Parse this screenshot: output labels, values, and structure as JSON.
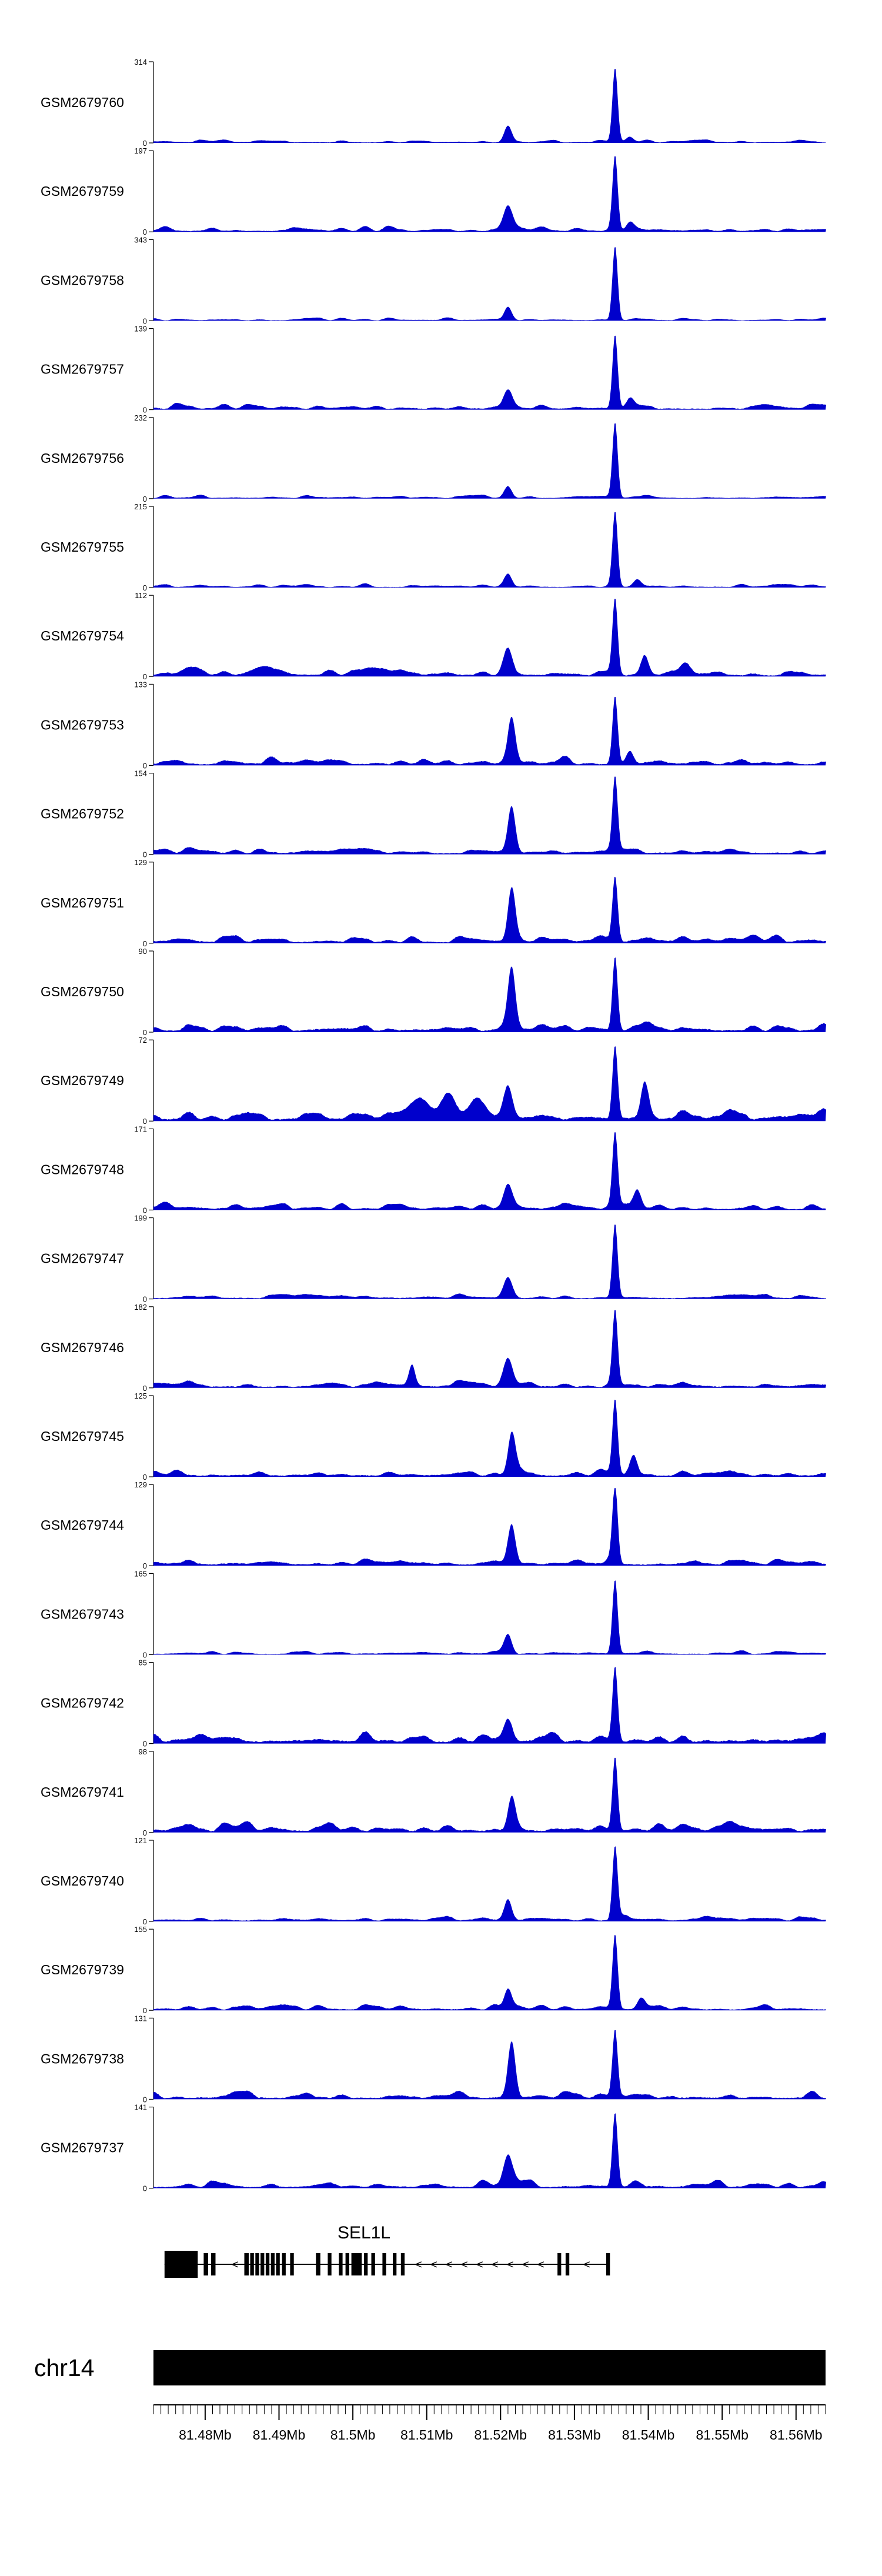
{
  "figure": {
    "kind": "genome-browser-coverage-tracks",
    "background": "#ffffff"
  },
  "colors": {
    "signal": "#0000cc",
    "gene": "#000000",
    "ideogram": "#000000",
    "axis": "#000000",
    "arrow": "#555555"
  },
  "chart_data": {
    "type": "area",
    "title": "",
    "x_axis": {
      "unit": "Mb",
      "domain": [
        81.473,
        81.564
      ],
      "ticks": [
        {
          "value": 81.48,
          "label": "81.48Mb"
        },
        {
          "value": 81.49,
          "label": "81.49Mb"
        },
        {
          "value": 81.5,
          "label": "81.5Mb"
        },
        {
          "value": 81.51,
          "label": "81.51Mb"
        },
        {
          "value": 81.52,
          "label": "81.52Mb"
        },
        {
          "value": 81.53,
          "label": "81.53Mb"
        },
        {
          "value": 81.54,
          "label": "81.54Mb"
        },
        {
          "value": 81.55,
          "label": "81.55Mb"
        },
        {
          "value": 81.56,
          "label": "81.56Mb"
        }
      ]
    },
    "tracks": [
      {
        "label": "GSM2679760",
        "ymax": 314,
        "ymin": 0,
        "noise": 0.02,
        "peaks": [
          [
            81.5355,
            1.0,
            0.00035
          ],
          [
            81.521,
            0.22,
            0.0005
          ],
          [
            81.5375,
            0.07,
            0.0005
          ]
        ]
      },
      {
        "label": "GSM2679759",
        "ymax": 197,
        "ymin": 0,
        "noise": 0.035,
        "peaks": [
          [
            81.5355,
            1.0,
            0.00035
          ],
          [
            81.521,
            0.3,
            0.0006
          ],
          [
            81.5375,
            0.1,
            0.0005
          ]
        ]
      },
      {
        "label": "GSM2679758",
        "ymax": 343,
        "ymin": 0,
        "noise": 0.02,
        "peaks": [
          [
            81.5355,
            1.0,
            0.00035
          ],
          [
            81.521,
            0.18,
            0.0005
          ]
        ]
      },
      {
        "label": "GSM2679757",
        "ymax": 139,
        "ymin": 0,
        "noise": 0.04,
        "peaks": [
          [
            81.5355,
            1.0,
            0.00035
          ],
          [
            81.521,
            0.26,
            0.0006
          ],
          [
            81.5375,
            0.12,
            0.0005
          ]
        ]
      },
      {
        "label": "GSM2679756",
        "ymax": 232,
        "ymin": 0,
        "noise": 0.025,
        "peaks": [
          [
            81.5355,
            1.0,
            0.00035
          ],
          [
            81.521,
            0.15,
            0.0005
          ]
        ]
      },
      {
        "label": "GSM2679755",
        "ymax": 215,
        "ymin": 0,
        "noise": 0.025,
        "peaks": [
          [
            81.5355,
            1.0,
            0.00035
          ],
          [
            81.521,
            0.15,
            0.0005
          ],
          [
            81.5385,
            0.1,
            0.0005
          ]
        ]
      },
      {
        "label": "GSM2679754",
        "ymax": 112,
        "ymin": 0,
        "noise": 0.055,
        "peaks": [
          [
            81.5355,
            1.0,
            0.00035
          ],
          [
            81.521,
            0.32,
            0.0006
          ],
          [
            81.5395,
            0.26,
            0.0005
          ],
          [
            81.545,
            0.16,
            0.0007
          ],
          [
            81.488,
            0.12,
            0.0015
          ],
          [
            81.478,
            0.1,
            0.0012
          ],
          [
            81.503,
            0.1,
            0.0015
          ]
        ]
      },
      {
        "label": "GSM2679753",
        "ymax": 133,
        "ymin": 0,
        "noise": 0.055,
        "peaks": [
          [
            81.5355,
            0.92,
            0.00035
          ],
          [
            81.5215,
            0.6,
            0.0005
          ],
          [
            81.5375,
            0.18,
            0.0005
          ]
        ]
      },
      {
        "label": "GSM2679752",
        "ymax": 154,
        "ymin": 0,
        "noise": 0.045,
        "peaks": [
          [
            81.5355,
            1.0,
            0.00035
          ],
          [
            81.5215,
            0.62,
            0.0005
          ]
        ]
      },
      {
        "label": "GSM2679751",
        "ymax": 129,
        "ymin": 0,
        "noise": 0.055,
        "peaks": [
          [
            81.5355,
            0.85,
            0.00035
          ],
          [
            81.5215,
            0.72,
            0.0005
          ]
        ]
      },
      {
        "label": "GSM2679750",
        "ymax": 90,
        "ymin": 0,
        "noise": 0.065,
        "peaks": [
          [
            81.5355,
            1.0,
            0.00035
          ],
          [
            81.5215,
            0.8,
            0.0005
          ]
        ]
      },
      {
        "label": "GSM2679749",
        "ymax": 72,
        "ymin": 0,
        "noise": 0.075,
        "peaks": [
          [
            81.5355,
            1.0,
            0.00035
          ],
          [
            81.521,
            0.4,
            0.0006
          ],
          [
            81.5395,
            0.42,
            0.0005
          ],
          [
            81.509,
            0.22,
            0.0012
          ],
          [
            81.513,
            0.26,
            0.001
          ],
          [
            81.517,
            0.26,
            0.001
          ]
        ]
      },
      {
        "label": "GSM2679748",
        "ymax": 171,
        "ymin": 0,
        "noise": 0.045,
        "peaks": [
          [
            81.5355,
            1.0,
            0.00035
          ],
          [
            81.521,
            0.33,
            0.0006
          ],
          [
            81.5385,
            0.22,
            0.0005
          ]
        ]
      },
      {
        "label": "GSM2679747",
        "ymax": 199,
        "ymin": 0,
        "noise": 0.035,
        "peaks": [
          [
            81.5355,
            1.0,
            0.00035
          ],
          [
            81.521,
            0.28,
            0.0006
          ]
        ]
      },
      {
        "label": "GSM2679746",
        "ymax": 182,
        "ymin": 0,
        "noise": 0.045,
        "peaks": [
          [
            81.5355,
            1.0,
            0.00035
          ],
          [
            81.521,
            0.33,
            0.0006
          ],
          [
            81.508,
            0.26,
            0.0004
          ]
        ]
      },
      {
        "label": "GSM2679745",
        "ymax": 125,
        "ymin": 0,
        "noise": 0.05,
        "peaks": [
          [
            81.5355,
            1.0,
            0.00035
          ],
          [
            81.5215,
            0.55,
            0.0005
          ],
          [
            81.538,
            0.28,
            0.0005
          ]
        ]
      },
      {
        "label": "GSM2679744",
        "ymax": 129,
        "ymin": 0,
        "noise": 0.05,
        "peaks": [
          [
            81.5355,
            1.0,
            0.00035
          ],
          [
            81.5215,
            0.52,
            0.0005
          ]
        ]
      },
      {
        "label": "GSM2679743",
        "ymax": 165,
        "ymin": 0,
        "noise": 0.03,
        "peaks": [
          [
            81.5355,
            1.0,
            0.00035
          ],
          [
            81.521,
            0.22,
            0.0005
          ]
        ]
      },
      {
        "label": "GSM2679742",
        "ymax": 85,
        "ymin": 0,
        "noise": 0.08,
        "peaks": [
          [
            81.5355,
            1.0,
            0.00035
          ],
          [
            81.521,
            0.3,
            0.0006
          ]
        ]
      },
      {
        "label": "GSM2679741",
        "ymax": 98,
        "ymin": 0,
        "noise": 0.065,
        "peaks": [
          [
            81.5355,
            1.0,
            0.00035
          ],
          [
            81.5215,
            0.45,
            0.0005
          ]
        ]
      },
      {
        "label": "GSM2679740",
        "ymax": 121,
        "ymin": 0,
        "noise": 0.04,
        "peaks": [
          [
            81.5355,
            1.0,
            0.00035
          ],
          [
            81.521,
            0.28,
            0.0005
          ]
        ]
      },
      {
        "label": "GSM2679739",
        "ymax": 155,
        "ymin": 0,
        "noise": 0.04,
        "peaks": [
          [
            81.5355,
            1.0,
            0.00035
          ],
          [
            81.521,
            0.28,
            0.0005
          ],
          [
            81.539,
            0.14,
            0.0005
          ]
        ]
      },
      {
        "label": "GSM2679738",
        "ymax": 131,
        "ymin": 0,
        "noise": 0.055,
        "peaks": [
          [
            81.5355,
            0.9,
            0.00035
          ],
          [
            81.5215,
            0.75,
            0.0005
          ]
        ]
      },
      {
        "label": "GSM2679737",
        "ymax": 141,
        "ymin": 0,
        "noise": 0.05,
        "peaks": [
          [
            81.5355,
            1.0,
            0.00035
          ],
          [
            81.521,
            0.42,
            0.0006
          ]
        ]
      }
    ],
    "gene_track": {
      "gene_name": "SEL1L",
      "strand": "-",
      "line_start": 81.4745,
      "line_end": 81.5347,
      "utr_box": [
        81.4745,
        81.479
      ],
      "exons": [
        [
          81.4798,
          81.4804
        ],
        [
          81.4808,
          81.4814
        ],
        [
          81.4853,
          81.4859
        ],
        [
          81.4861,
          81.4866
        ],
        [
          81.4868,
          81.4873
        ],
        [
          81.4875,
          81.488
        ],
        [
          81.4882,
          81.4887
        ],
        [
          81.4889,
          81.4894
        ],
        [
          81.4896,
          81.4901
        ],
        [
          81.4904,
          81.4909
        ],
        [
          81.4915,
          81.492
        ],
        [
          81.495,
          81.4956
        ],
        [
          81.4966,
          81.4971
        ],
        [
          81.4981,
          81.4986
        ],
        [
          81.499,
          81.4995
        ],
        [
          81.4998,
          81.5012
        ],
        [
          81.5015,
          81.502
        ],
        [
          81.5025,
          81.503
        ],
        [
          81.504,
          81.5045
        ],
        [
          81.5054,
          81.5059
        ],
        [
          81.5065,
          81.507
        ],
        [
          81.5277,
          81.5282
        ],
        [
          81.5288,
          81.5293
        ],
        [
          81.5343,
          81.5348
        ]
      ]
    },
    "ideogram": {
      "label": "chr14"
    }
  }
}
